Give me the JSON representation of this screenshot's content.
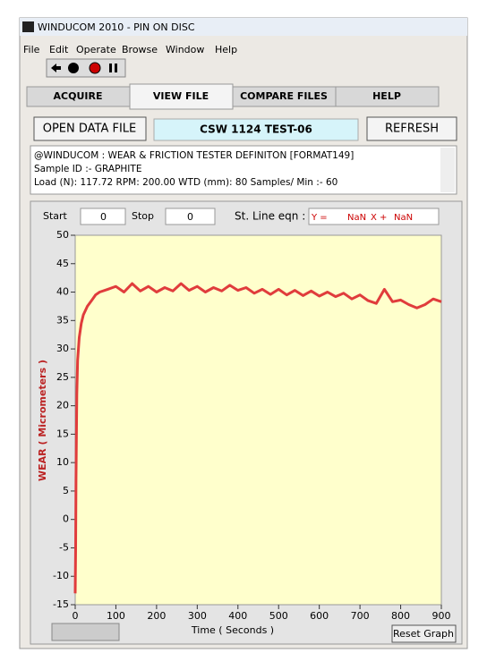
{
  "window": {
    "title": "WINDUCOM 2010 - PIN ON DISC",
    "menu": [
      "File",
      "Edit",
      "Operate",
      "Browse",
      "Window",
      "Help"
    ],
    "tabs": [
      "ACQUIRE",
      "VIEW FILE",
      "COMPARE FILES",
      "HELP"
    ],
    "buttons": {
      "open": "OPEN DATA FILE",
      "file_name": "CSW 1124 TEST-06",
      "refresh": "REFRESH",
      "reset": "Reset Graph"
    },
    "info_lines": [
      "@WINDUCOM : WEAR & FRICTION TESTER DEFINITON [FORMAT149]",
      "Sample ID :- GRAPHITE",
      "Load (N):  117.72 RPM:  200.00 WTD (mm):  80   Samples/ Min :-  60"
    ],
    "controls": {
      "start_label": "Start",
      "start_value": 0,
      "stop_label": "Stop",
      "stop_value": 0,
      "eqn_label": "St. Line eqn :",
      "eqn_y": "Y =",
      "eqn_slope": "NaN",
      "eqn_x": "X +",
      "eqn_intercept": "NaN"
    }
  },
  "chart_data": {
    "type": "line",
    "x_label": "Time ( Seconds )",
    "y_label": "WEAR ( Micrometers )",
    "x": [
      0,
      1,
      2,
      4,
      6,
      10,
      15,
      20,
      30,
      40,
      50,
      60,
      80,
      100,
      120,
      140,
      160,
      180,
      200,
      220,
      240,
      260,
      280,
      300,
      320,
      340,
      360,
      380,
      400,
      420,
      440,
      460,
      480,
      500,
      520,
      540,
      560,
      580,
      600,
      620,
      640,
      660,
      680,
      700,
      720,
      740,
      760,
      780,
      800,
      820,
      840,
      860,
      880,
      900
    ],
    "series": [
      {
        "color": "#e03c3c",
        "values": [
          -13,
          -5,
          7,
          22,
          28,
          32,
          34.5,
          36,
          37.5,
          38.5,
          39.5,
          40,
          40.5,
          41,
          40,
          41.5,
          40.2,
          41,
          40,
          40.8,
          40.2,
          41.5,
          40.3,
          41,
          40,
          40.8,
          40.2,
          41.2,
          40.3,
          40.8,
          39.8,
          40.5,
          39.6,
          40.5,
          39.5,
          40.3,
          39.4,
          40.2,
          39.3,
          40,
          39.2,
          39.8,
          38.8,
          39.5,
          38.5,
          38,
          40.5,
          38.3,
          38.6,
          37.8,
          37.2,
          37.8,
          38.8,
          38.3
        ]
      }
    ],
    "xlim": [
      0,
      900
    ],
    "ylim": [
      -15,
      50
    ],
    "xticks": [
      0,
      100,
      200,
      300,
      400,
      500,
      600,
      700,
      800,
      900
    ],
    "yticks": [
      -15,
      -10,
      -5,
      0,
      5,
      10,
      15,
      20,
      25,
      30,
      35,
      40,
      45,
      50
    ],
    "grid": false
  }
}
